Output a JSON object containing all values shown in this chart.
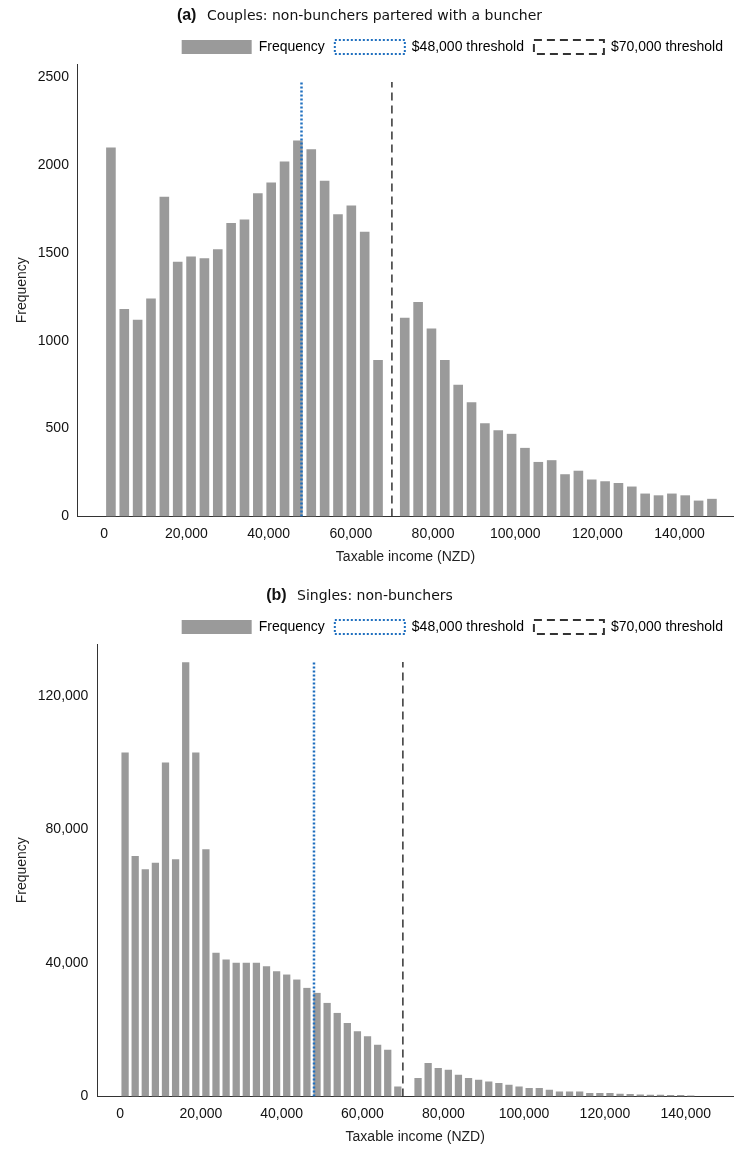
{
  "chart_data": [
    {
      "type": "histogram",
      "title": "(a) Couples: non-bunchers partered with a buncher",
      "xlabel": "Taxable income (NZD)",
      "ylabel": "Frequency",
      "legend": "top right",
      "grid": false,
      "bins": [
        0,
        3250,
        6500,
        9750,
        13000,
        16250,
        19500,
        22750,
        26000,
        29250,
        32500,
        35750,
        39000,
        42250,
        45500,
        48750,
        52000,
        55250,
        58500,
        61750,
        65000,
        68250,
        71500,
        74750,
        78000,
        81250,
        84500,
        87750,
        91000,
        94250,
        97500,
        100750,
        104000,
        107250,
        110500,
        113750,
        117000,
        120250,
        123500,
        126750,
        130000,
        133250,
        136500,
        139750,
        143000,
        146250,
        149500
      ],
      "series": [
        {
          "name": "Frequency",
          "color": "#9a9a9a",
          "values": [
            2100,
            1180,
            1120,
            1240,
            1820,
            1450,
            1480,
            1470,
            1520,
            1670,
            1690,
            1840,
            1900,
            2020,
            2140,
            2090,
            1910,
            1720,
            1770,
            1620,
            890,
            0,
            1130,
            1220,
            1070,
            890,
            750,
            650,
            530,
            490,
            470,
            390,
            310,
            320,
            240,
            260,
            210,
            200,
            190,
            170,
            130,
            120,
            130,
            120,
            90,
            100
          ]
        }
      ],
      "xlim": [
        -6400,
        153000
      ],
      "ylim": [
        0,
        2575
      ],
      "xticks": [
        0,
        {
          "value": 20000,
          "label": "20,000"
        },
        {
          "value": 40000,
          "label": "40,000"
        },
        {
          "value": 60000,
          "label": "60,000"
        },
        {
          "value": 80000,
          "label": "80,000"
        },
        {
          "value": 100000,
          "label": "100,000"
        },
        {
          "value": 120000,
          "label": "120,000"
        },
        {
          "value": 140000,
          "label": "140,000"
        }
      ],
      "yticks": [
        0,
        500,
        1000,
        1500,
        2000,
        2500
      ],
      "ref_lines": [
        {
          "axis": "x",
          "value": 48000,
          "label": "$48,000 threshold",
          "color": "#1f6fbf",
          "line_style": "dotted"
        },
        {
          "axis": "x",
          "value": 70000,
          "label": "$70,000 threshold",
          "color": "#333333",
          "line_style": "dashed"
        }
      ]
    },
    {
      "type": "histogram",
      "title": "(b) Singles: non-bunchers",
      "xlabel": "Taxable income (NZD)",
      "ylabel": "Frequency",
      "legend": "top right",
      "grid": false,
      "bins": [
        0,
        2500,
        5000,
        7500,
        10000,
        12500,
        15000,
        17500,
        20000,
        22500,
        25000,
        27500,
        30000,
        32500,
        35000,
        37500,
        40000,
        42500,
        45000,
        47500,
        50000,
        52500,
        55000,
        57500,
        60000,
        62500,
        65000,
        67500,
        70000,
        72500,
        75000,
        77500,
        80000,
        82500,
        85000,
        87500,
        90000,
        92500,
        95000,
        97500,
        100000,
        102500,
        105000,
        107500,
        110000,
        112500,
        115000,
        117500,
        120000,
        122500,
        125000,
        127500,
        130000,
        132500,
        135000,
        137500,
        140000,
        142500
      ],
      "series": [
        {
          "name": "Frequency",
          "color": "#9a9a9a",
          "values": [
            103000,
            72000,
            68000,
            70000,
            100000,
            71000,
            130000,
            103000,
            74000,
            43000,
            41000,
            40000,
            40000,
            40000,
            39000,
            37500,
            36500,
            35000,
            32500,
            31000,
            28000,
            25000,
            22000,
            19500,
            18000,
            15500,
            14000,
            3000,
            0,
            5500,
            10000,
            8500,
            8000,
            6500,
            5500,
            5000,
            4500,
            4000,
            3500,
            3000,
            2500,
            2500,
            2000,
            1500,
            1500,
            1500,
            1000,
            1000,
            1000,
            800,
            700,
            600,
            500,
            500,
            400,
            400,
            300
          ]
        }
      ],
      "xlim": [
        -5600,
        151700
      ],
      "ylim": [
        0,
        135500
      ],
      "xticks": [
        0,
        {
          "value": 20000,
          "label": "20,000"
        },
        {
          "value": 40000,
          "label": "40,000"
        },
        {
          "value": 60000,
          "label": "60,000"
        },
        {
          "value": 80000,
          "label": "80,000"
        },
        {
          "value": 100000,
          "label": "100,000"
        },
        {
          "value": 120000,
          "label": "120,000"
        },
        {
          "value": 140000,
          "label": "140,000"
        }
      ],
      "yticks": [
        0,
        {
          "value": 40000,
          "label": "40,000"
        },
        {
          "value": 80000,
          "label": "80,000"
        },
        {
          "value": 120000,
          "label": "120,000"
        }
      ],
      "ref_lines": [
        {
          "axis": "x",
          "value": 48000,
          "label": "$48,000 threshold",
          "color": "#1f6fbf",
          "line_style": "dotted"
        },
        {
          "axis": "x",
          "value": 70000,
          "label": "$70,000 threshold",
          "color": "#333333",
          "line_style": "dashed"
        }
      ]
    }
  ]
}
